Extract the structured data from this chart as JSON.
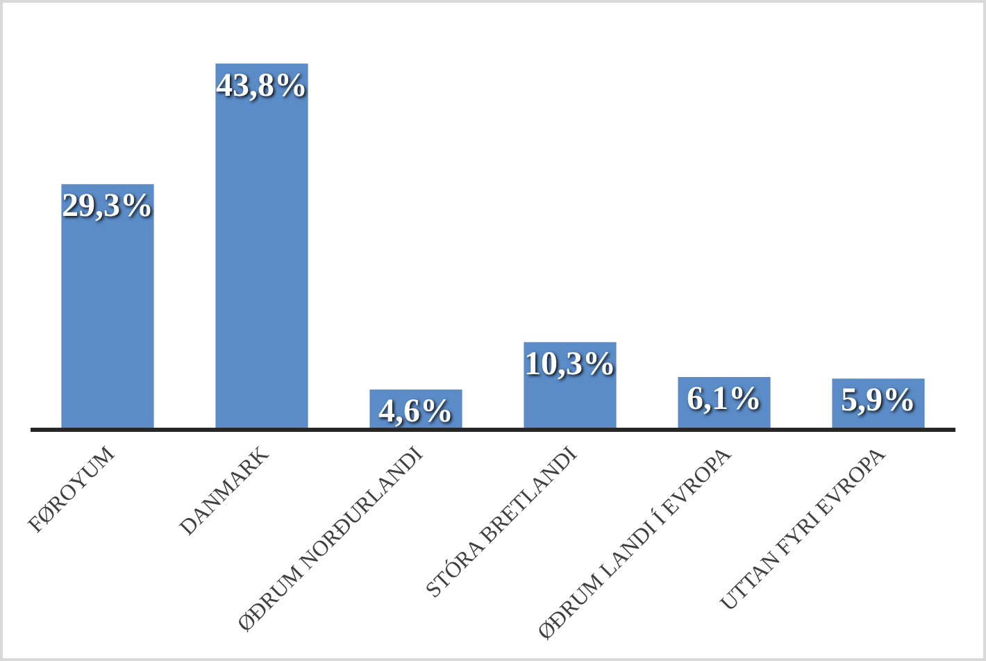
{
  "chart_data": {
    "type": "bar",
    "categories": [
      "FØROYUM",
      "DANMARK",
      "ØÐRUM NORÐURLANDI",
      "STÓRA BRETLANDI",
      "ØÐRUM LANDI Í EVROPA",
      "UTTAN FYRI EVROPA"
    ],
    "values": [
      29.3,
      43.8,
      4.6,
      10.3,
      6.1,
      5.9
    ],
    "value_labels": [
      "29,3%",
      "43,8%",
      "4,6%",
      "10,3%",
      "6,1%",
      "5,9%"
    ],
    "color": "#5b8cc8"
  }
}
